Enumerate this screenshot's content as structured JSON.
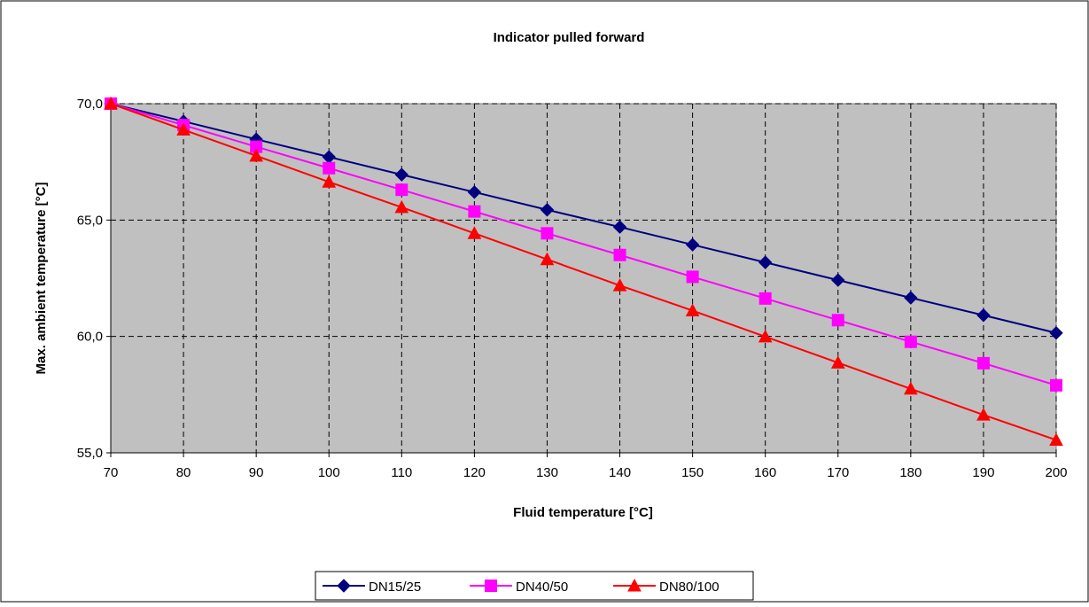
{
  "chart_data": {
    "type": "line",
    "title": "Indicator pulled forward",
    "xlabel": "Fluid temperature [°C]",
    "ylabel": "Max. ambient temperature [°C]",
    "x": [
      70,
      80,
      90,
      100,
      110,
      120,
      130,
      140,
      150,
      160,
      170,
      180,
      190,
      200
    ],
    "xlim": [
      70,
      200
    ],
    "ylim": [
      55,
      70
    ],
    "x_ticks": [
      "70",
      "80",
      "90",
      "100",
      "110",
      "120",
      "130",
      "140",
      "150",
      "160",
      "170",
      "180",
      "190",
      "200"
    ],
    "y_ticks": [
      {
        "value": 70,
        "label": "70,0"
      },
      {
        "value": 65,
        "label": "65,0"
      },
      {
        "value": 60,
        "label": "60,0"
      },
      {
        "value": 55,
        "label": "55,0"
      }
    ],
    "grid": true,
    "plot_background": "#C0C0C0",
    "legend_position": "bottom",
    "series": [
      {
        "name": "DN15/25",
        "color": "#000080",
        "marker": "diamond",
        "values": [
          70.0,
          69.24,
          68.47,
          67.71,
          66.95,
          66.2,
          65.44,
          64.7,
          63.94,
          63.18,
          62.42,
          61.66,
          60.91,
          60.15
        ]
      },
      {
        "name": "DN40/50",
        "color": "#FF00FF",
        "marker": "square",
        "values": [
          70.0,
          69.08,
          68.15,
          67.23,
          66.3,
          65.37,
          64.43,
          63.5,
          62.56,
          61.63,
          60.7,
          59.77,
          58.85,
          57.9
        ]
      },
      {
        "name": "DN80/100",
        "color": "#FF0000",
        "marker": "triangle",
        "values": [
          70.0,
          68.88,
          67.76,
          66.64,
          65.55,
          64.43,
          63.31,
          62.19,
          61.11,
          59.99,
          58.87,
          57.75,
          56.63,
          55.55
        ]
      }
    ]
  }
}
